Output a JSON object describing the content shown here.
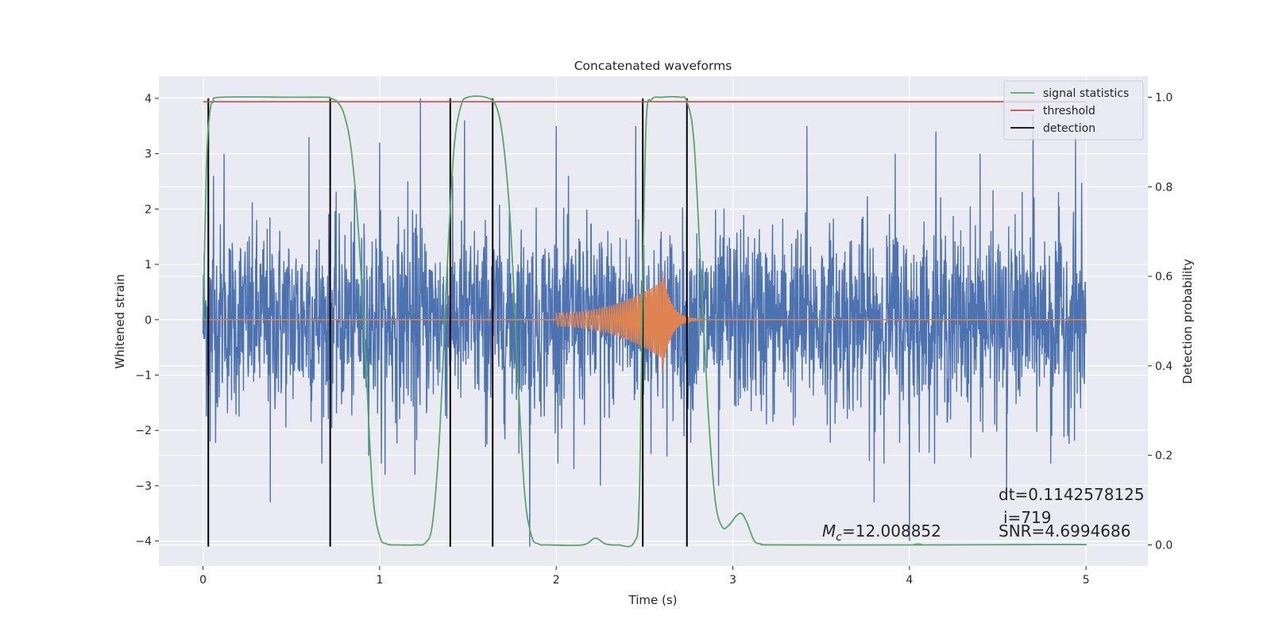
{
  "chart_data": {
    "type": "line",
    "title": "Concatenated waveforms",
    "xlabel": "Time (s)",
    "ylabel": "Whitened strain",
    "ylabel_right": "Detection probability",
    "xlim": [
      -0.25,
      5.35
    ],
    "ylim": [
      -4.45,
      4.4
    ],
    "ylim_right": [
      -0.047,
      1.047
    ],
    "x_ticks": [
      0,
      1,
      2,
      3,
      4,
      5
    ],
    "x_tick_labels": [
      "0",
      "1",
      "2",
      "3",
      "4",
      "5"
    ],
    "y_ticks": [
      -4,
      -3,
      -2,
      -1,
      0,
      1,
      2,
      3,
      4
    ],
    "y_tick_labels": [
      "−4",
      "−3",
      "−2",
      "−1",
      "0",
      "1",
      "2",
      "3",
      "4"
    ],
    "y2_ticks": [
      0.0,
      0.2,
      0.4,
      0.6,
      0.8,
      1.0
    ],
    "y2_tick_labels": [
      "0.0",
      "0.2",
      "0.4",
      "0.6",
      "0.8",
      "1.0"
    ],
    "grid": true,
    "legend_position": "upper-right",
    "colors": {
      "strain": "#4c72b0",
      "template": "#dd8452",
      "signal_statistics": "#55a868",
      "threshold": "#c44e52",
      "detection": "#000000",
      "background": "#eaeaf2",
      "grid": "#ffffff"
    },
    "series": [
      {
        "name": "signal statistics",
        "axis": "right",
        "points": [
          [
            0.0,
            0.5
          ],
          [
            0.02,
            0.85
          ],
          [
            0.04,
            0.97
          ],
          [
            0.06,
            0.99
          ],
          [
            0.1,
            1.0
          ],
          [
            0.5,
            1.0
          ],
          [
            0.7,
            1.0
          ],
          [
            0.72,
            0.998
          ],
          [
            0.76,
            0.99
          ],
          [
            0.8,
            0.96
          ],
          [
            0.84,
            0.88
          ],
          [
            0.88,
            0.7
          ],
          [
            0.92,
            0.42
          ],
          [
            0.96,
            0.12
          ],
          [
            1.0,
            0.02
          ],
          [
            1.04,
            0.002
          ],
          [
            1.1,
            0.0
          ],
          [
            1.2,
            0.0
          ],
          [
            1.26,
            0.005
          ],
          [
            1.3,
            0.05
          ],
          [
            1.34,
            0.25
          ],
          [
            1.38,
            0.6
          ],
          [
            1.42,
            0.88
          ],
          [
            1.46,
            0.98
          ],
          [
            1.5,
            1.0
          ],
          [
            1.6,
            1.0
          ],
          [
            1.66,
            0.98
          ],
          [
            1.7,
            0.9
          ],
          [
            1.74,
            0.72
          ],
          [
            1.78,
            0.4
          ],
          [
            1.82,
            0.12
          ],
          [
            1.86,
            0.02
          ],
          [
            1.9,
            0.002
          ],
          [
            1.95,
            0.0
          ],
          [
            2.15,
            0.0
          ],
          [
            2.22,
            0.015
          ],
          [
            2.28,
            0.002
          ],
          [
            2.35,
            0.0
          ],
          [
            2.44,
            0.005
          ],
          [
            2.47,
            0.1
          ],
          [
            2.49,
            0.6
          ],
          [
            2.51,
            0.95
          ],
          [
            2.54,
            0.995
          ],
          [
            2.6,
            1.0
          ],
          [
            2.7,
            1.0
          ],
          [
            2.74,
            0.99
          ],
          [
            2.78,
            0.9
          ],
          [
            2.82,
            0.6
          ],
          [
            2.86,
            0.3
          ],
          [
            2.9,
            0.1
          ],
          [
            2.94,
            0.04
          ],
          [
            2.98,
            0.045
          ],
          [
            3.02,
            0.065
          ],
          [
            3.05,
            0.07
          ],
          [
            3.08,
            0.05
          ],
          [
            3.12,
            0.01
          ],
          [
            3.16,
            0.002
          ],
          [
            3.25,
            0.0
          ],
          [
            4.0,
            0.0
          ],
          [
            4.05,
            0.002
          ],
          [
            4.1,
            0.0
          ],
          [
            4.9,
            0.001
          ],
          [
            5.0,
            0.0
          ]
        ]
      },
      {
        "name": "threshold",
        "axis": "right",
        "points": [
          [
            0.0,
            0.99
          ],
          [
            5.0,
            0.99
          ]
        ]
      },
      {
        "name": "detection",
        "axis": "left",
        "x": [
          0.03,
          0.72,
          1.4,
          1.64,
          2.49,
          2.74
        ],
        "y_range": [
          -4.1,
          4.0
        ]
      }
    ],
    "strain_noise": {
      "axis": "left",
      "x_range": [
        0.0,
        5.0
      ],
      "spikes": [
        [
          0.03,
          1.9
        ],
        [
          0.04,
          -2.2
        ],
        [
          0.06,
          2.6
        ],
        [
          0.12,
          3.0
        ],
        [
          0.38,
          -3.3
        ],
        [
          0.6,
          3.3
        ],
        [
          1.0,
          3.2
        ],
        [
          1.03,
          -2.8
        ],
        [
          1.16,
          2.5
        ],
        [
          1.2,
          -2.8
        ],
        [
          1.23,
          4.0
        ],
        [
          1.48,
          3.6
        ],
        [
          1.6,
          -2.3
        ],
        [
          1.85,
          -4.1
        ],
        [
          2.0,
          3.5
        ],
        [
          2.1,
          -2.7
        ],
        [
          2.25,
          -3.0
        ],
        [
          2.45,
          3.5
        ],
        [
          2.92,
          -3.0
        ],
        [
          3.42,
          3.5
        ],
        [
          3.8,
          -3.3
        ],
        [
          3.92,
          3.0
        ],
        [
          4.0,
          -4.0
        ],
        [
          4.15,
          3.4
        ],
        [
          4.4,
          3.0
        ],
        [
          4.55,
          -3.1
        ],
        [
          4.7,
          3.7
        ],
        [
          4.8,
          -2.6
        ],
        [
          4.94,
          3.3
        ],
        [
          4.97,
          -1.6
        ]
      ]
    },
    "template": {
      "axis": "left",
      "start": 2.0,
      "merger": 2.6,
      "end": 2.85,
      "amp_start": 0.12,
      "amp_peak": 0.7,
      "amp_min_peak": -0.97
    },
    "annotations": [
      {
        "name": "chirp-mass",
        "symbol": "M",
        "subscript": "c",
        "text": "=12.008852"
      },
      {
        "name": "dt",
        "text": "dt=0.1142578125"
      },
      {
        "name": "index",
        "text": "i=719"
      },
      {
        "name": "snr",
        "text": "SNR=4.6994686"
      }
    ]
  }
}
